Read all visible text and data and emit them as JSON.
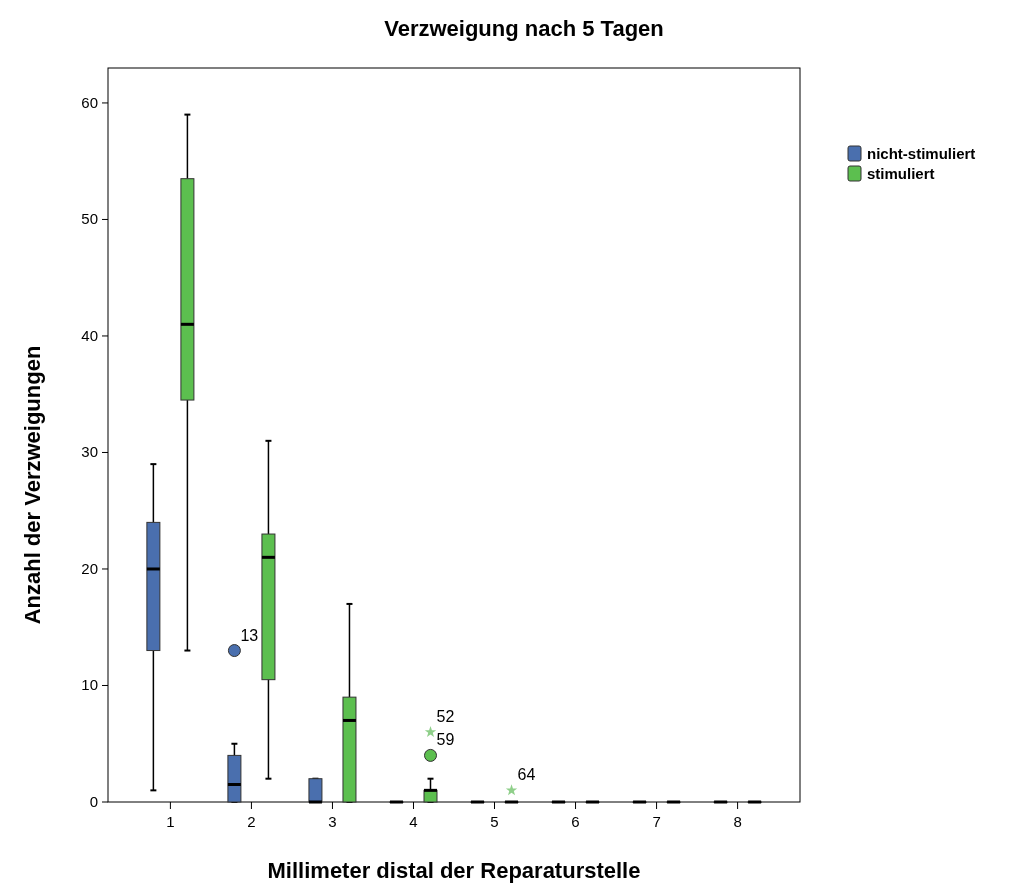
{
  "chart_data": {
    "type": "box",
    "title": "Verzweigung nach 5 Tagen",
    "xlabel": "Millimeter distal der Reparaturstelle",
    "ylabel": "Anzahl der Verzweigungen",
    "categories": [
      "1",
      "2",
      "3",
      "4",
      "5",
      "6",
      "7",
      "8"
    ],
    "ylim": [
      0,
      63
    ],
    "yticks": [
      0,
      10,
      20,
      30,
      40,
      50,
      60
    ],
    "grid": false,
    "legend": "top right",
    "series": [
      {
        "name": "nicht-stimuliert",
        "color": "#4a6fae",
        "boxes": [
          {
            "low": 1,
            "q1": 13,
            "median": 20,
            "q3": 24,
            "high": 29
          },
          {
            "low": 0,
            "q1": 0,
            "median": 1.5,
            "q3": 4,
            "high": 5,
            "outliers": [
              13
            ]
          },
          {
            "low": 0,
            "q1": 0,
            "median": 0,
            "q3": 2,
            "high": 2
          },
          {
            "low": 0,
            "q1": 0,
            "median": 0,
            "q3": 0,
            "high": 0
          },
          {
            "low": 0,
            "q1": 0,
            "median": 0,
            "q3": 0,
            "high": 0
          },
          {
            "low": 0,
            "q1": 0,
            "median": 0,
            "q3": 0,
            "high": 0
          },
          {
            "low": 0,
            "q1": 0,
            "median": 0,
            "q3": 0,
            "high": 0
          },
          {
            "low": 0,
            "q1": 0,
            "median": 0,
            "q3": 0,
            "high": 0
          }
        ]
      },
      {
        "name": "stimuliert",
        "color": "#5cbf4f",
        "boxes": [
          {
            "low": 13,
            "q1": 34.5,
            "median": 41,
            "q3": 53.5,
            "high": 59
          },
          {
            "low": 2,
            "q1": 10.5,
            "median": 21,
            "q3": 23,
            "high": 31
          },
          {
            "low": 0,
            "q1": 0,
            "median": 7,
            "q3": 9,
            "high": 17
          },
          {
            "low": 0,
            "q1": 0,
            "median": 1,
            "q3": 1,
            "high": 2,
            "outliers": [
              4
            ]
          },
          {
            "low": 0,
            "q1": 0,
            "median": 0,
            "q3": 0,
            "high": 0
          },
          {
            "low": 0,
            "q1": 0,
            "median": 0,
            "q3": 0,
            "high": 0
          },
          {
            "low": 0,
            "q1": 0,
            "median": 0,
            "q3": 0,
            "high": 0
          },
          {
            "low": 0,
            "q1": 0,
            "median": 0,
            "q3": 0,
            "high": 0
          }
        ]
      },
      {
        "type": "scatter",
        "marker": "star",
        "color": "#8fcf8a",
        "x": [
          "4",
          "5"
        ],
        "values": [
          6,
          1
        ]
      }
    ],
    "annotations": [
      "13",
      "59",
      "52",
      "64"
    ]
  }
}
